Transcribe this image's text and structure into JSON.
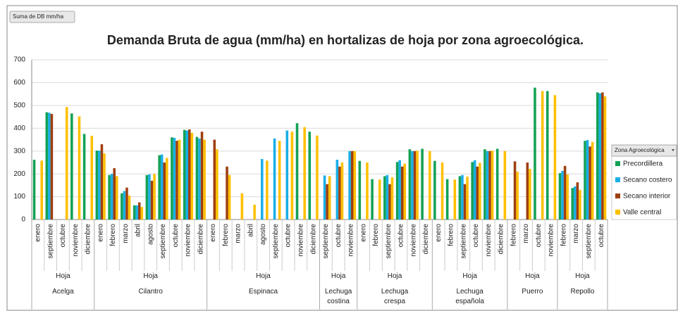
{
  "chart_data": {
    "type": "bar",
    "title": "Demanda Bruta de agua (mm/ha) en hortalizas de hoja por zona agroecológica.",
    "field_button": "Suma de DB mm/ha",
    "legend_title": "Zona Agroecológica",
    "legend_position": "right",
    "grid": true,
    "ylim": [
      0,
      700
    ],
    "yticks": [
      0,
      100,
      200,
      300,
      400,
      500,
      600,
      700
    ],
    "groups": [
      {
        "name": "Acelga",
        "type_label": "Hoja",
        "categories": [
          "enero",
          "septiembre",
          "octubre",
          "noviembre",
          "diciembre"
        ]
      },
      {
        "name": "Cilantro",
        "type_label": "Hoja",
        "categories": [
          "enero",
          "febrero",
          "marzo",
          "abril",
          "agosto",
          "septiembre",
          "octubre",
          "noviembre",
          "diciembre"
        ]
      },
      {
        "name": "Espinaca",
        "type_label": "Hoja",
        "categories": [
          "enero",
          "febrero",
          "marzo",
          "abril",
          "agosto",
          "septiembre",
          "octubre",
          "noviembre",
          "diciembre"
        ]
      },
      {
        "name": "Lechuga costina",
        "type_label": "Hoja",
        "categories": [
          "septiembre",
          "octubre",
          "noviembre"
        ]
      },
      {
        "name": "Lechuga crespa",
        "type_label": "Hoja",
        "categories": [
          "enero",
          "febrero",
          "septiembre",
          "octubre",
          "noviembre",
          "diciembre"
        ]
      },
      {
        "name": "Lechuga española",
        "type_label": "Hoja",
        "categories": [
          "enero",
          "febrero",
          "septiembre",
          "octubre",
          "noviembre",
          "diciembre"
        ]
      },
      {
        "name": "Puerro",
        "type_label": "Hoja",
        "categories": [
          "febrero",
          "marzo",
          "octubre",
          "noviembre"
        ]
      },
      {
        "name": "Repollo",
        "type_label": "Hoja",
        "categories": [
          "febrero",
          "marzo",
          "septiembre",
          "octubre"
        ]
      }
    ],
    "series": [
      {
        "name": "Precordillera",
        "color": "#14a155",
        "values": [
          262,
          470,
          null,
          465,
          375,
          302,
          195,
          115,
          62,
          195,
          282,
          360,
          393,
          362,
          null,
          null,
          null,
          null,
          null,
          null,
          null,
          422,
          385,
          null,
          null,
          null,
          257,
          177,
          190,
          252,
          308,
          310,
          257,
          177,
          190,
          252,
          308,
          310,
          null,
          null,
          578,
          563,
          203,
          138,
          345,
          557
        ]
      },
      {
        "name": "Secano costero",
        "color": "#19aee6",
        "values": [
          null,
          468,
          null,
          null,
          null,
          302,
          200,
          125,
          62,
          198,
          285,
          358,
          390,
          355,
          null,
          null,
          null,
          null,
          265,
          355,
          390,
          null,
          null,
          193,
          262,
          300,
          null,
          null,
          195,
          260,
          300,
          null,
          null,
          null,
          195,
          260,
          300,
          null,
          null,
          null,
          null,
          null,
          213,
          145,
          348,
          553
        ]
      },
      {
        "name": "Secano interior",
        "color": "#9e3f10",
        "values": [
          null,
          463,
          null,
          null,
          null,
          330,
          225,
          140,
          75,
          170,
          250,
          345,
          395,
          385,
          350,
          232,
          null,
          null,
          null,
          null,
          null,
          null,
          null,
          155,
          232,
          300,
          null,
          null,
          155,
          232,
          300,
          null,
          null,
          null,
          155,
          232,
          300,
          null,
          255,
          250,
          null,
          null,
          235,
          163,
          320,
          557
        ]
      },
      {
        "name": "Valle central",
        "color": "#ffc000",
        "values": [
          258,
          null,
          493,
          452,
          367,
          290,
          190,
          105,
          55,
          200,
          270,
          350,
          380,
          350,
          308,
          195,
          115,
          65,
          258,
          345,
          385,
          405,
          368,
          190,
          250,
          300,
          250,
          175,
          185,
          245,
          302,
          300,
          250,
          175,
          188,
          248,
          302,
          300,
          210,
          222,
          563,
          545,
          198,
          130,
          340,
          540
        ]
      }
    ]
  }
}
